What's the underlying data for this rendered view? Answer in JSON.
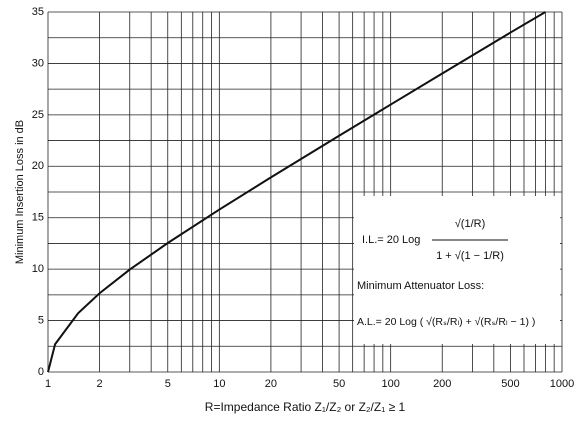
{
  "chart_data": {
    "type": "line",
    "log_x": true,
    "grid": true,
    "x_label": "R=Impedance Ratio  Z₁/Z₂ or Z₂/Z₁ ≥ 1",
    "y_label": "Minimum Insertion Loss in dB",
    "x": [
      1,
      1.1,
      1.5,
      2,
      3,
      5,
      10,
      20,
      50,
      100,
      200,
      500,
      800
    ],
    "series": [
      {
        "name": "I.L.",
        "color": "#111111",
        "values": [
          0,
          2.7,
          5.72,
          7.66,
          9.96,
          12.54,
          15.79,
          18.92,
          22.97,
          26.0,
          29.02,
          33.0,
          35.0
        ]
      }
    ],
    "xlim": [
      1,
      1000
    ],
    "ylim": [
      0,
      35
    ],
    "xticks": [
      1,
      2,
      5,
      10,
      20,
      50,
      100,
      200,
      500,
      1000
    ],
    "x_minor_ticks": [
      3,
      4,
      6,
      7,
      8,
      9,
      30,
      40,
      60,
      70,
      80,
      90,
      300,
      400,
      600,
      700,
      800,
      900
    ],
    "yticks": [
      0,
      5,
      10,
      15,
      20,
      25,
      30,
      35
    ],
    "y_minor_ticks": [
      2.5,
      7.5,
      12.5,
      17.5,
      22.5,
      27.5,
      32.5
    ],
    "annotations": [
      "I.L.= 20 Log",
      "√(1/R)",
      "1 + √(1 − 1/R)",
      "Minimum Attenuator Loss:",
      "A.L.= 20 Log ( √(Rₛ/Rₗ) + √(Rₛ/Rₗ − 1) )"
    ]
  }
}
